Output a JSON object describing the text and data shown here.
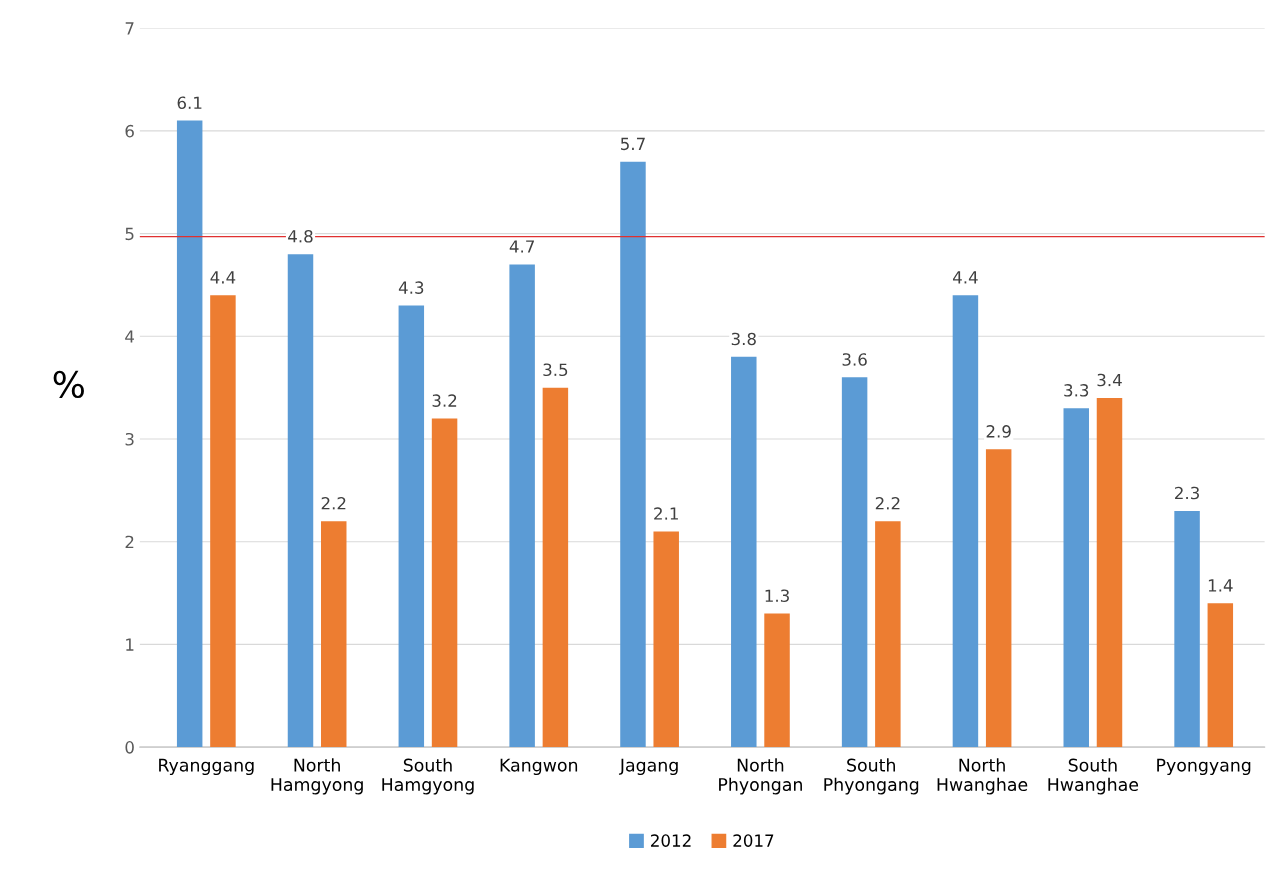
{
  "chart_data": {
    "type": "bar",
    "ylabel": "%",
    "categories": [
      "Ryanggang",
      "North\nHamgyong",
      "South\nHamgyong",
      "Kangwon",
      "Jagang",
      "North\nPhyongan",
      "South\nPhyongang",
      "North\nHwanghae",
      "South\nHwanghae",
      "Pyongyang"
    ],
    "series": [
      {
        "name": "2012",
        "color": "#5b9bd5",
        "values": [
          6.1,
          4.8,
          4.3,
          4.7,
          5.7,
          3.8,
          3.6,
          4.4,
          3.3,
          2.3
        ]
      },
      {
        "name": "2017",
        "color": "#ed7d31",
        "values": [
          4.4,
          2.2,
          3.2,
          3.5,
          2.1,
          1.3,
          2.2,
          2.9,
          3.4,
          1.4
        ]
      }
    ],
    "ylim": [
      0,
      7
    ],
    "yticks": [
      0,
      1,
      2,
      3,
      4,
      5,
      6,
      7
    ],
    "ref_lines": [
      {
        "axis": "y",
        "value": 4.97,
        "color": "#e03030"
      }
    ],
    "data_labels": true,
    "grid": "y",
    "legend": "bottom"
  }
}
